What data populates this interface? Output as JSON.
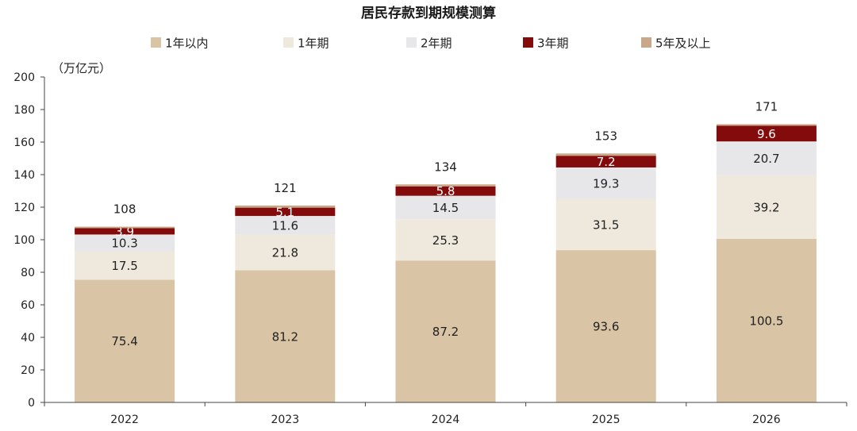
{
  "chart_data": {
    "type": "bar",
    "stacked": true,
    "title": "居民存款到期规模测算",
    "ylabel": "（万亿元）",
    "ylim": [
      0,
      200
    ],
    "yticks": [
      0,
      20,
      40,
      60,
      80,
      100,
      120,
      140,
      160,
      180,
      200
    ],
    "categories": [
      "2022",
      "2023",
      "2024",
      "2025",
      "2026"
    ],
    "legend_position": "top",
    "series": [
      {
        "name": "1年以内",
        "color": "#d9c4a5",
        "values": [
          75.4,
          81.2,
          87.2,
          93.6,
          100.5
        ],
        "labels": [
          "75.4",
          "81.2",
          "87.2",
          "93.6",
          "100.5"
        ]
      },
      {
        "name": "1年期",
        "color": "#efe8dd",
        "values": [
          17.5,
          21.8,
          25.3,
          31.5,
          39.2
        ],
        "labels": [
          "17.5",
          "21.8",
          "25.3",
          "31.5",
          "39.2"
        ]
      },
      {
        "name": "2年期",
        "color": "#e7e7ea",
        "values": [
          10.3,
          11.6,
          14.5,
          19.3,
          20.7
        ],
        "labels": [
          "10.3",
          "11.6",
          "14.5",
          "19.3",
          "20.7"
        ]
      },
      {
        "name": "3年期",
        "color": "#840b0b",
        "values": [
          3.9,
          5.1,
          5.8,
          7.2,
          9.6
        ],
        "labels": [
          "3.9",
          "5.1",
          "5.8",
          "7.2",
          "9.6"
        ]
      },
      {
        "name": "5年及以上",
        "color": "#c9a889",
        "values": [
          0.9,
          1.3,
          1.2,
          1.4,
          1.0
        ],
        "labels": []
      }
    ],
    "totals": [
      "108",
      "121",
      "134",
      "153",
      "171"
    ]
  }
}
